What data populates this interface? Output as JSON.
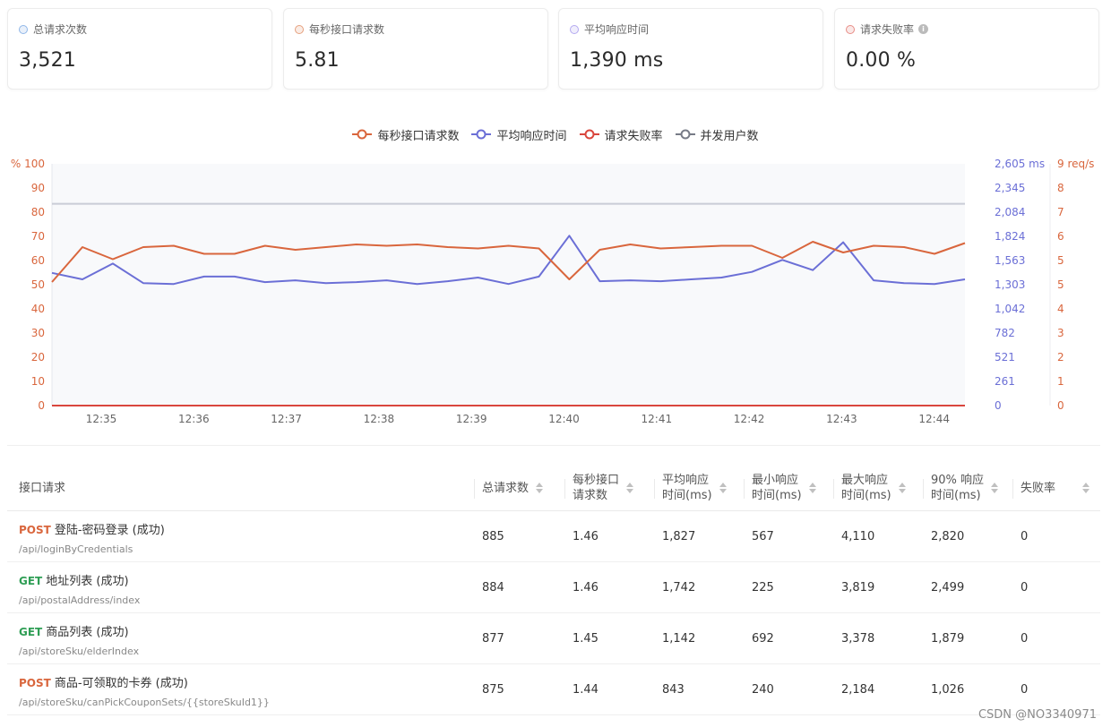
{
  "cards": [
    {
      "label": "总请求次数",
      "value": "3,521",
      "dot_color": "#8fb6e8",
      "has_info": false
    },
    {
      "label": "每秒接口请求数",
      "value": "5.81",
      "dot_color": "#e6a07e",
      "has_info": false
    },
    {
      "label": "平均响应时间",
      "value": "1,390 ms",
      "dot_color": "#b4a9f0",
      "has_info": false
    },
    {
      "label": "请求失败率",
      "value": "0.00 %",
      "dot_color": "#e88d86",
      "has_info": true
    }
  ],
  "legend": [
    {
      "label": "每秒接口请求数",
      "color": "#d9663d"
    },
    {
      "label": "平均响应时间",
      "color": "#6b6fd6"
    },
    {
      "label": "请求失败率",
      "color": "#d9463d"
    },
    {
      "label": "并发用户数",
      "color": "#777b87"
    }
  ],
  "chart_data": {
    "type": "line",
    "x": [
      "12:35",
      "12:35",
      "12:35",
      "12:35",
      "12:36",
      "12:36",
      "12:36",
      "12:37",
      "12:37",
      "12:38",
      "12:38",
      "12:38",
      "12:39",
      "12:39",
      "12:39",
      "12:40",
      "12:40",
      "12:40",
      "12:41",
      "12:41",
      "12:41",
      "12:42",
      "12:42",
      "12:42",
      "12:43",
      "12:43",
      "12:43",
      "12:44",
      "12:44",
      "12:44"
    ],
    "xticks": [
      "12:35",
      "12:36",
      "12:37",
      "12:38",
      "12:39",
      "12:40",
      "12:41",
      "12:42",
      "12:43",
      "12:44"
    ],
    "left_axis": {
      "label": "%",
      "ticks": [
        "100",
        "90",
        "80",
        "70",
        "60",
        "50",
        "40",
        "30",
        "20",
        "10",
        "0"
      ],
      "range": [
        0,
        100
      ]
    },
    "ms_axis": {
      "label": "ms",
      "ticks": [
        "2,605 ms",
        "2,345",
        "2,084",
        "1,824",
        "1,563",
        "1,303",
        "1,042",
        "782",
        "521",
        "261",
        "0"
      ],
      "range": [
        0,
        2605
      ]
    },
    "rps_axis": {
      "label": "req/s",
      "ticks": [
        "9 req/s",
        "8",
        "7",
        "6",
        "5",
        "5",
        "4",
        "3",
        "2",
        "1",
        "0"
      ],
      "range": [
        0,
        9
      ]
    },
    "series": [
      {
        "name": "每秒接口请求数",
        "axis": "rps",
        "color": "#d9663d",
        "values": [
          4.6,
          5.9,
          5.45,
          5.9,
          5.95,
          5.65,
          5.65,
          5.95,
          5.8,
          5.9,
          6.0,
          5.95,
          6.0,
          5.9,
          5.85,
          5.95,
          5.85,
          4.7,
          5.8,
          6.0,
          5.85,
          5.9,
          5.95,
          5.95,
          5.5,
          6.1,
          5.7,
          5.95,
          5.9,
          5.65
        ],
        "end_value": 6.05
      },
      {
        "name": "平均响应时间",
        "axis": "ms",
        "color": "#6b6fd6",
        "values": [
          1430,
          1360,
          1530,
          1320,
          1310,
          1390,
          1390,
          1330,
          1350,
          1320,
          1330,
          1350,
          1310,
          1340,
          1380,
          1310,
          1390,
          1830,
          1340,
          1350,
          1340,
          1360,
          1380,
          1440,
          1570,
          1460,
          1760,
          1350,
          1320,
          1310
        ],
        "end_value": 1360
      },
      {
        "name": "请求失败率",
        "axis": "left",
        "color": "#d9463d",
        "values": [
          0,
          0,
          0,
          0,
          0,
          0,
          0,
          0,
          0,
          0,
          0,
          0,
          0,
          0,
          0,
          0,
          0,
          0,
          0,
          0,
          0,
          0,
          0,
          0,
          0,
          0,
          0,
          0,
          0,
          0
        ]
      },
      {
        "name": "并发用户数",
        "axis": "left",
        "color": "#c9ccd6",
        "values": [
          83.5,
          83.5,
          83.5,
          83.5,
          83.5,
          83.5,
          83.5,
          83.5,
          83.5,
          83.5,
          83.5,
          83.5,
          83.5,
          83.5,
          83.5,
          83.5,
          83.5,
          83.5,
          83.5,
          83.5,
          83.5,
          83.5,
          83.5,
          83.5,
          83.5,
          83.5,
          83.5,
          83.5,
          83.5,
          83.5
        ]
      }
    ]
  },
  "table": {
    "headers": [
      "接口请求",
      "总请求数",
      "每秒接口\n请求数",
      "平均响应\n时间(ms)",
      "最小响应\n时间(ms)",
      "最大响应\n时间(ms)",
      "90% 响应\n时间(ms)",
      "失败率"
    ],
    "rows": [
      {
        "method": "POST",
        "name": "登陆-密码登录 (成功)",
        "path": "/api/loginByCredentials",
        "cells": [
          "885",
          "1.46",
          "1,827",
          "567",
          "4,110",
          "2,820",
          "0"
        ]
      },
      {
        "method": "GET",
        "name": "地址列表 (成功)",
        "path": "/api/postalAddress/index",
        "cells": [
          "884",
          "1.46",
          "1,742",
          "225",
          "3,819",
          "2,499",
          "0"
        ]
      },
      {
        "method": "GET",
        "name": "商品列表 (成功)",
        "path": "/api/storeSku/elderIndex",
        "cells": [
          "877",
          "1.45",
          "1,142",
          "692",
          "3,378",
          "1,879",
          "0"
        ]
      },
      {
        "method": "POST",
        "name": "商品-可领取的卡券 (成功)",
        "path": "/api/storeSku/canPickCouponSets/{{storeSkuId1}}",
        "cells": [
          "875",
          "1.44",
          "843",
          "240",
          "2,184",
          "1,026",
          "0"
        ]
      }
    ]
  },
  "watermark": "CSDN @NO3340971"
}
